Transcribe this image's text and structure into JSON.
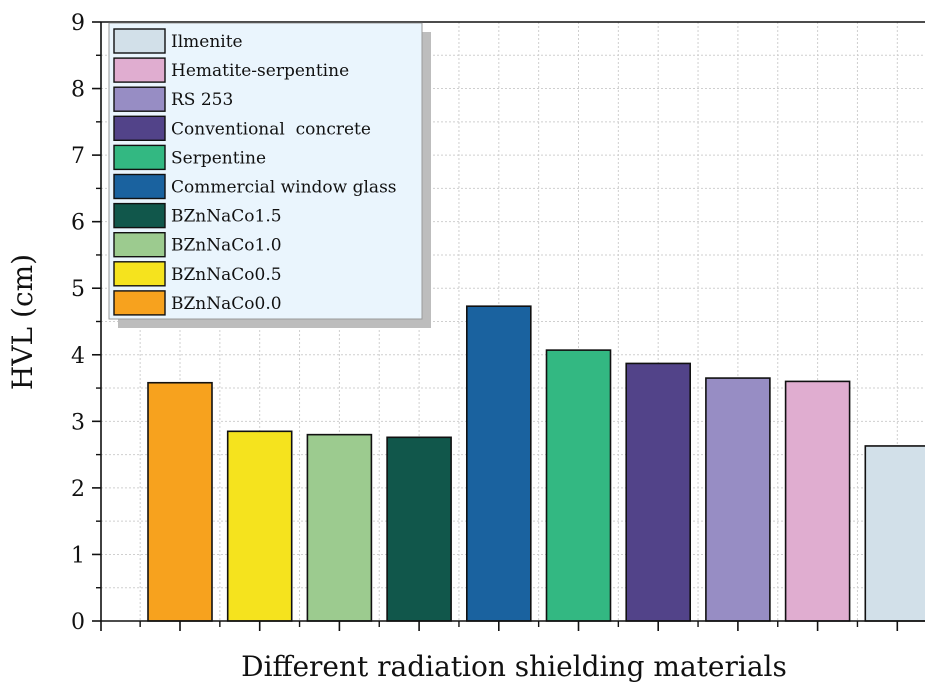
{
  "chart_data": {
    "type": "bar",
    "title": "",
    "xlabel": "Different radiation shielding materials",
    "ylabel": "HVL (cm)",
    "ylim": [
      0,
      9
    ],
    "yticks": [
      "0",
      "1",
      "2",
      "3",
      "4",
      "5",
      "6",
      "7",
      "8",
      "9"
    ],
    "grid": true,
    "legend_position": "top-left",
    "categories": [
      "BZnNaCo0.0",
      "BZnNaCo0.5",
      "BZnNaCo1.0",
      "BZnNaCo1.5",
      "Commercial window glass",
      "Serpentine",
      "Conventional  concrete",
      "RS 253",
      "Hematite-serpentine",
      "Ilmenite"
    ],
    "values": [
      3.58,
      2.85,
      2.8,
      2.76,
      4.73,
      4.07,
      3.87,
      3.65,
      3.6,
      2.63
    ],
    "colors": [
      "#F7A21E",
      "#F5E31E",
      "#9CCB8F",
      "#11574B",
      "#1A629F",
      "#33B882",
      "#524389",
      "#978DC4",
      "#E0ADD0",
      "#D2E0E9"
    ],
    "legend_order": [
      "Ilmenite",
      "Hematite-serpentine",
      "RS 253",
      "Conventional  concrete",
      "Serpentine",
      "Commercial window glass",
      "BZnNaCo1.5",
      "BZnNaCo1.0",
      "BZnNaCo0.5",
      "BZnNaCo0.0"
    ]
  }
}
